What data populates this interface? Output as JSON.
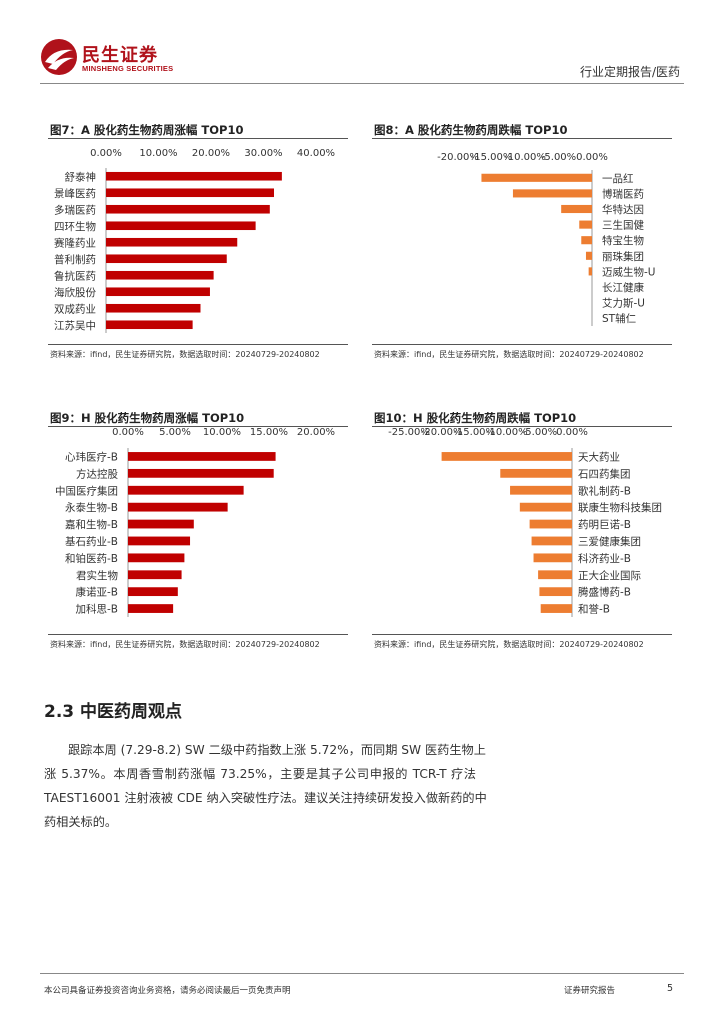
{
  "header": {
    "logo_cn": "民生证券",
    "logo_en": "MINSHENG SECURITIES",
    "report_type": "行业定期报告/医药",
    "colors": {
      "brand": "#b0121b"
    }
  },
  "figures": [
    {
      "title": "图7：A 股化药生物药周涨幅 TOP10",
      "source": "资料来源：ifind，民生证券研究院，数据选取时间：20240729-20240802"
    },
    {
      "title": "图8：A 股化药生物药周跌幅 TOP10",
      "source": "资料来源：ifind，民生证券研究院，数据选取时间：20240729-20240802"
    },
    {
      "title": "图9：H 股化药生物药周涨幅 TOP10",
      "source": "资料来源：ifind，民生证券研究院，数据选取时间：20240729-20240802"
    },
    {
      "title": "图10：H 股化药生物药周跌幅 TOP10",
      "source": "资料来源：ifind，民生证券研究院，数据选取时间：20240729-20240802"
    }
  ],
  "chart_data": [
    {
      "type": "bar",
      "orientation": "horizontal",
      "color": "#c00000",
      "x_tick_labels": [
        "0.00%",
        "10.00%",
        "20.00%",
        "30.00%",
        "40.00%"
      ],
      "xlim": [
        0,
        40
      ],
      "categories": [
        "舒泰神",
        "景峰医药",
        "多瑞医药",
        "四环生物",
        "赛隆药业",
        "普利制药",
        "鲁抗医药",
        "海欣股份",
        "双成药业",
        "江苏吴中"
      ],
      "values": [
        33.5,
        32.0,
        31.2,
        28.5,
        25.0,
        23.0,
        20.5,
        19.8,
        18.0,
        16.5
      ]
    },
    {
      "type": "bar",
      "orientation": "horizontal",
      "color": "#ed7d31",
      "x_tick_labels": [
        "-20.00%",
        "-15.00%",
        "-10.00%",
        "-5.00%",
        "0.00%"
      ],
      "xlim": [
        -20,
        0
      ],
      "categories": [
        "一品红",
        "博瑞医药",
        "华特达因",
        "三生国健",
        "特宝生物",
        "丽珠集团",
        "迈威生物-U",
        "长江健康",
        "艾力斯-U",
        "ST辅仁"
      ],
      "values": [
        -16.5,
        -11.8,
        -4.6,
        -1.9,
        -1.6,
        -0.9,
        -0.5,
        0,
        0,
        0
      ]
    },
    {
      "type": "bar",
      "orientation": "horizontal",
      "color": "#c00000",
      "x_tick_labels": [
        "0.00%",
        "5.00%",
        "10.00%",
        "15.00%",
        "20.00%"
      ],
      "xlim": [
        0,
        20
      ],
      "categories": [
        "心玮医疗-B",
        "方达控股",
        "中国医疗集团",
        "永泰生物-B",
        "嘉和生物-B",
        "基石药业-B",
        "和铂医药-B",
        "君实生物",
        "康诺亚-B",
        "加科思-B"
      ],
      "values": [
        15.7,
        15.5,
        12.3,
        10.6,
        7.0,
        6.6,
        6.0,
        5.7,
        5.3,
        4.8
      ]
    },
    {
      "type": "bar",
      "orientation": "horizontal",
      "color": "#ed7d31",
      "x_tick_labels": [
        "-25.00%",
        "-20.00%",
        "-15.00%",
        "-10.00%",
        "-5.00%",
        "0.00%"
      ],
      "xlim": [
        -25,
        0
      ],
      "categories": [
        "天大药业",
        "石四药集团",
        "歌礼制药-B",
        "联康生物科技集团",
        "药明巨诺-B",
        "三爱健康集团",
        "科济药业-B",
        "正大企业国际",
        "腾盛博药-B",
        "和誉-B"
      ],
      "values": [
        -20.0,
        -11.0,
        -9.5,
        -8.0,
        -6.5,
        -6.2,
        -5.9,
        -5.2,
        -5.0,
        -4.8
      ]
    }
  ],
  "section": {
    "heading": "2.3 中医药周观点",
    "lines": [
      "跟踪本周 (7.29-8.2) SW 二级中药指数上涨 5.72%，而同期 SW 医药生物上",
      "涨 5.37%。本周香雪制药涨幅 73.25%，主要是其子公司申报的 TCR-T 疗法",
      "TAEST16001 注射液被 CDE 纳入突破性疗法。建议关注持续研发投入做新药的中",
      "药相关标的。"
    ]
  },
  "footer": {
    "disclaimer": "本公司具备证券投资咨询业务资格，请务必阅读最后一页免责声明",
    "doc_type": "证券研究报告",
    "page": "5"
  }
}
